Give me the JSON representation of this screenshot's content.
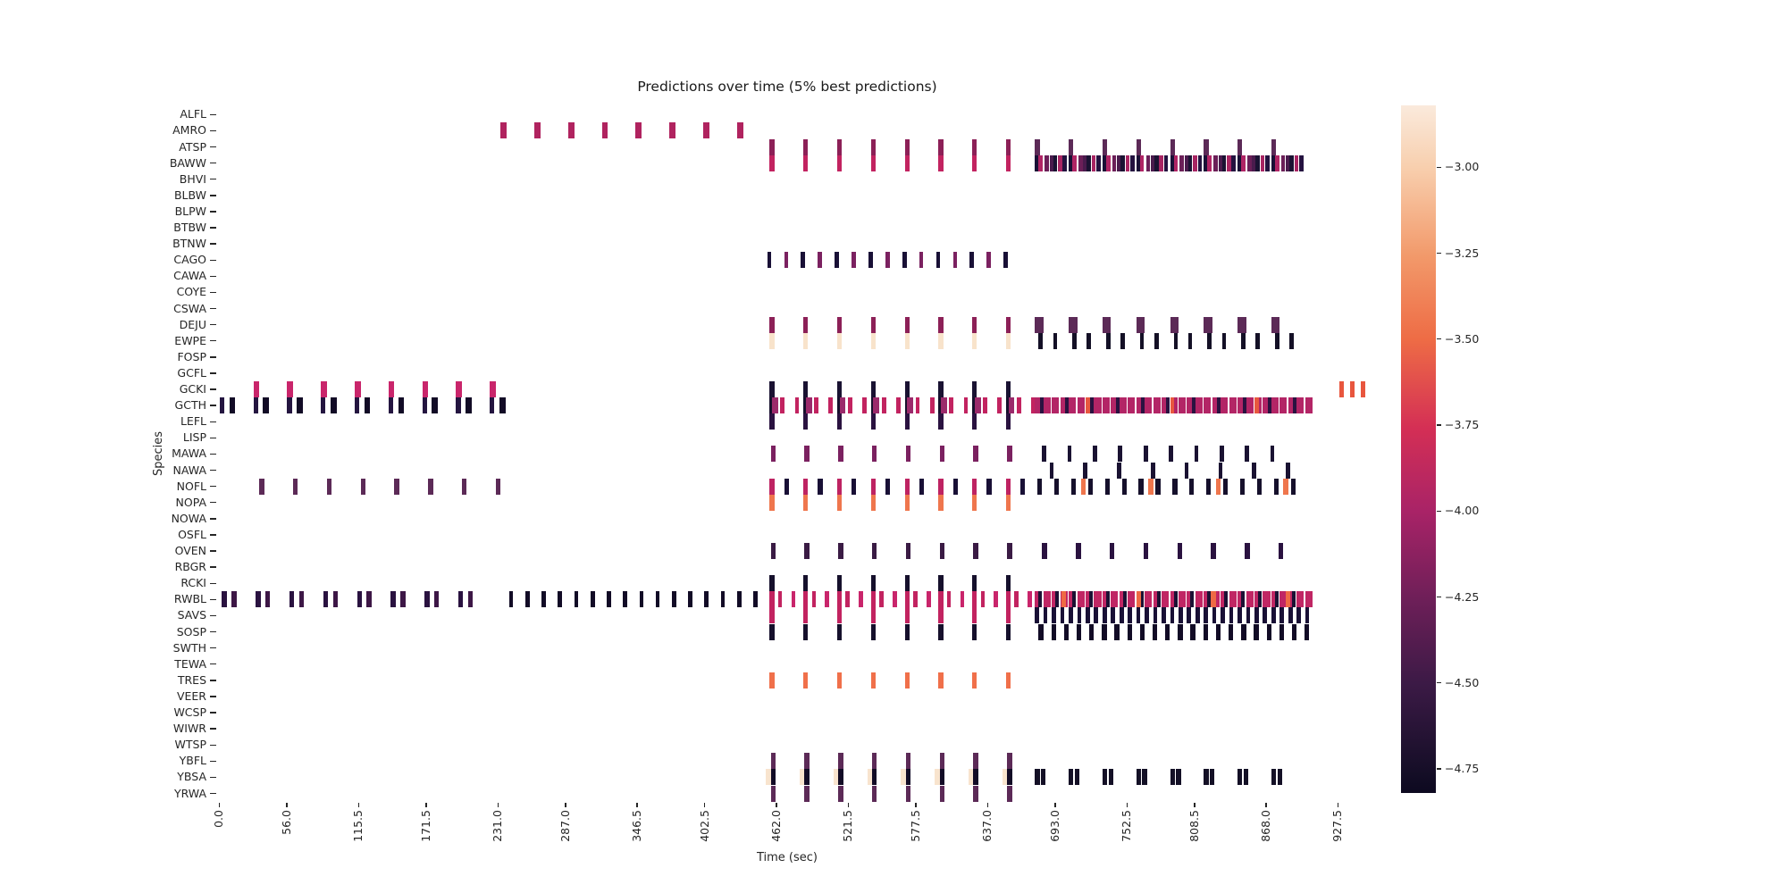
{
  "chart_data": {
    "type": "heatmap",
    "title": "Predictions over time (5% best predictions)",
    "xlabel": "Time (sec)",
    "ylabel": "Species",
    "species": [
      "ALFL",
      "AMRO",
      "ATSP",
      "BAWW",
      "BHVI",
      "BLBW",
      "BLPW",
      "BTBW",
      "BTNW",
      "CAGO",
      "CAWA",
      "COYE",
      "CSWA",
      "DEJU",
      "EWPE",
      "FOSP",
      "GCFL",
      "GCKI",
      "GCTH",
      "LEFL",
      "LISP",
      "MAWA",
      "NAWA",
      "NOFL",
      "NOPA",
      "NOWA",
      "OSFL",
      "OVEN",
      "RBGR",
      "RCKI",
      "RWBL",
      "SAVS",
      "SOSP",
      "SWTH",
      "TEWA",
      "TRES",
      "VEER",
      "WCSP",
      "WIWR",
      "WTSP",
      "YBFL",
      "YBSA",
      "YRWA"
    ],
    "x_ticks": [
      0.0,
      56.0,
      115.5,
      171.5,
      231.0,
      287.0,
      346.5,
      402.5,
      462.0,
      521.5,
      577.5,
      637.0,
      693.0,
      752.5,
      808.5,
      868.0,
      927.5
    ],
    "time_range": [
      0,
      945
    ],
    "bin_seconds": 3.5,
    "colorbar": {
      "vmax": -2.82,
      "vmin": -4.82,
      "ticks": [
        -3.0,
        -3.25,
        -3.5,
        -3.75,
        -4.0,
        -4.25,
        -4.5,
        -4.75
      ],
      "gradient_stops": [
        {
          "pos": 0.0,
          "color": "#faeadc"
        },
        {
          "pos": 0.09,
          "color": "#f8cfae"
        },
        {
          "pos": 0.22,
          "color": "#f2996a"
        },
        {
          "pos": 0.34,
          "color": "#ee6c45"
        },
        {
          "pos": 0.47,
          "color": "#d42f55"
        },
        {
          "pos": 0.59,
          "color": "#a92367"
        },
        {
          "pos": 0.72,
          "color": "#6d1f58"
        },
        {
          "pos": 0.84,
          "color": "#3c1a46"
        },
        {
          "pos": 0.97,
          "color": "#150e27"
        },
        {
          "pos": 1.0,
          "color": "#0d0920"
        }
      ]
    },
    "mark_groups": [
      {
        "species": "GCKI",
        "t0": 30,
        "period": 28,
        "count": 8,
        "w": 5,
        "color": "#c9256b"
      },
      {
        "species": "GCTH",
        "t0": 2,
        "period": 28,
        "count": 9,
        "w": 4,
        "color": "#241540"
      },
      {
        "species": "GCTH",
        "t0": 10,
        "period": 28,
        "count": 9,
        "w": 5,
        "color": "#120b26"
      },
      {
        "species": "NOFL",
        "t0": 35,
        "period": 28,
        "count": 8,
        "w": 4,
        "color": "#5c2a57"
      },
      {
        "species": "RWBL",
        "t0": 4,
        "period": 28,
        "count": 8,
        "w": 4,
        "color": "#2a1240"
      },
      {
        "species": "RWBL",
        "t0": 12,
        "period": 28,
        "count": 8,
        "w": 4,
        "color": "#3d1746"
      },
      {
        "species": "RWBL",
        "t0": 242,
        "period": 13.5,
        "count": 16,
        "w": 3.5,
        "color": "#120b26"
      },
      {
        "species": "AMRO",
        "t0": 235,
        "period": 28,
        "count": 8,
        "w": 5,
        "color": "#b0235f"
      },
      {
        "species": "ATSP",
        "t0": 458,
        "period": 28,
        "count": 8,
        "w": 4,
        "color": "#8c2057"
      },
      {
        "species": "BAWW",
        "t0": 458,
        "period": 28,
        "count": 8,
        "w": 4,
        "color": "#c22360"
      },
      {
        "species": "CAGO",
        "t0": 456,
        "period": 28,
        "count": 8,
        "w": 3.5,
        "color": "#191036"
      },
      {
        "species": "CAGO",
        "t0": 470,
        "period": 28,
        "count": 7,
        "w": 3.5,
        "color": "#7b2160"
      },
      {
        "species": "DEJU",
        "t0": 458,
        "period": 28,
        "count": 8,
        "w": 4,
        "color": "#8c2057"
      },
      {
        "species": "EWPE",
        "t0": 458,
        "period": 28,
        "count": 8,
        "w": 4,
        "color": "#f8e3cb"
      },
      {
        "species": "GCKI",
        "t0": 458,
        "period": 28,
        "count": 8,
        "w": 4,
        "color": "#1a1232"
      },
      {
        "species": "GCTH",
        "t0": 458,
        "period": 28,
        "count": 8,
        "w": 5,
        "color": "#16102c"
      },
      {
        "species": "LEFL",
        "t0": 458,
        "period": 28,
        "count": 8,
        "w": 4,
        "color": "#2a1240"
      },
      {
        "species": "GCTH",
        "t0": 460,
        "period": 28,
        "count": 8,
        "w": 5,
        "color": "#9b2a6b"
      },
      {
        "species": "GCTH",
        "t0": 467,
        "period": 28,
        "count": 8,
        "w": 3.5,
        "color": "#c22360"
      },
      {
        "species": "GCTH",
        "t0": 479,
        "period": 28,
        "count": 8,
        "w": 3.5,
        "color": "#c22360"
      },
      {
        "species": "MAWA",
        "t0": 459,
        "period": 28,
        "count": 8,
        "w": 4,
        "color": "#7b2160"
      },
      {
        "species": "NOFL",
        "t0": 458,
        "period": 28,
        "count": 8,
        "w": 4,
        "color": "#be2362"
      },
      {
        "species": "NOPA",
        "t0": 458,
        "period": 28,
        "count": 8,
        "w": 4,
        "color": "#ef764d"
      },
      {
        "species": "NOFL",
        "t0": 470,
        "period": 28,
        "count": 8,
        "w": 4,
        "color": "#191036"
      },
      {
        "species": "OVEN",
        "t0": 459,
        "period": 28,
        "count": 8,
        "w": 4,
        "color": "#3a1b44"
      },
      {
        "species": "RCKI",
        "t0": 458,
        "period": 28,
        "count": 8,
        "w": 4,
        "color": "#16102c"
      },
      {
        "species": "RWBL",
        "t0": 458,
        "period": 28,
        "count": 8,
        "w": 4,
        "color": "#c22360"
      },
      {
        "species": "SAVS",
        "t0": 458,
        "period": 28,
        "count": 8,
        "w": 4,
        "color": "#c22360"
      },
      {
        "species": "SOSP",
        "t0": 458,
        "period": 28,
        "count": 8,
        "w": 4,
        "color": "#16102c"
      },
      {
        "species": "RWBL",
        "t0": 465,
        "period": 28,
        "count": 8,
        "w": 3.5,
        "color": "#c22360"
      },
      {
        "species": "RWBL",
        "t0": 476,
        "period": 28,
        "count": 8,
        "w": 3.5,
        "color": "#c9256b"
      },
      {
        "species": "TRES",
        "t0": 458,
        "period": 28,
        "count": 8,
        "w": 4,
        "color": "#f0704a"
      },
      {
        "species": "YBSA",
        "t0": 455,
        "period": 28,
        "count": 8,
        "w": 4,
        "color": "#f8e4ce"
      },
      {
        "species": "YBFL",
        "t0": 459,
        "period": 28,
        "count": 8,
        "w": 4,
        "color": "#5c2a57"
      },
      {
        "species": "YBSA",
        "t0": 459,
        "period": 28,
        "count": 8,
        "w": 4,
        "color": "#120b26"
      },
      {
        "species": "YRWA",
        "t0": 459,
        "period": 28,
        "count": 8,
        "w": 4,
        "color": "#5c2a57"
      },
      {
        "species": "ATSP",
        "t0": 678,
        "period": 28,
        "count": 8,
        "w": 4,
        "color": "#5c2a57"
      },
      {
        "species": "BAWW",
        "t0": 678,
        "period": 28,
        "count": 8,
        "w": 4,
        "color": "#191036"
      },
      {
        "species": "BAWW",
        "t0": 681,
        "period": 28,
        "count": 8,
        "w": 3.5,
        "color": "#b02565"
      },
      {
        "species": "BAWW",
        "t0": 686,
        "period": 28,
        "count": 8,
        "w": 3.5,
        "color": "#6b1f58"
      },
      {
        "species": "BAWW",
        "t0": 690,
        "period": 28,
        "count": 8,
        "w": 3.5,
        "color": "#4a1b4d"
      },
      {
        "species": "BAWW",
        "t0": 693,
        "period": 28,
        "count": 8,
        "w": 3.5,
        "color": "#1a1232"
      },
      {
        "species": "BAWW",
        "t0": 697,
        "period": 28,
        "count": 8,
        "w": 3.5,
        "color": "#a82563"
      },
      {
        "species": "BAWW",
        "t0": 701,
        "period": 28,
        "count": 8,
        "w": 3.5,
        "color": "#241240"
      },
      {
        "species": "DEJU",
        "t0": 678,
        "period": 28,
        "count": 8,
        "w": 7,
        "color": "#5c2a57"
      },
      {
        "species": "EWPE",
        "t0": 681,
        "period": 28,
        "count": 8,
        "w": 3.5,
        "color": "#141026"
      },
      {
        "species": "EWPE",
        "t0": 693,
        "period": 28,
        "count": 8,
        "w": 3.5,
        "color": "#141026"
      },
      {
        "species": "GCTH",
        "t0": 678,
        "period": 7,
        "count": 33,
        "w": 6,
        "color": "#b32566"
      },
      {
        "species": "GCTH",
        "t0": 682,
        "period": 21,
        "count": 11,
        "w": 3,
        "color": "#2a1240"
      },
      {
        "species": "GCTH",
        "t0": 720,
        "period": 70,
        "count": 3,
        "w": 3.5,
        "color": "#e8583f"
      },
      {
        "species": "MAWA",
        "t0": 684,
        "period": 21,
        "count": 10,
        "w": 3.5,
        "color": "#1a1232"
      },
      {
        "species": "NAWA",
        "t0": 690,
        "period": 28,
        "count": 8,
        "w": 3.5,
        "color": "#1a1232"
      },
      {
        "species": "NOFL",
        "t0": 680,
        "period": 14,
        "count": 16,
        "w": 4,
        "color": "#16102c"
      },
      {
        "species": "NOFL",
        "t0": 716,
        "period": 56,
        "count": 4,
        "w": 4,
        "color": "#ef764d"
      },
      {
        "species": "OVEN",
        "t0": 684,
        "period": 28,
        "count": 8,
        "w": 4,
        "color": "#2a1240"
      },
      {
        "species": "RWBL",
        "t0": 678,
        "period": 7,
        "count": 33,
        "w": 6,
        "color": "#c02664"
      },
      {
        "species": "RWBL",
        "t0": 681,
        "period": 14,
        "count": 16,
        "w": 3,
        "color": "#1c1134"
      },
      {
        "species": "RWBL",
        "t0": 700,
        "period": 62,
        "count": 4,
        "w": 4,
        "color": "#ef6a44"
      },
      {
        "species": "SAVS",
        "t0": 678,
        "period": 7,
        "count": 33,
        "w": 3.5,
        "color": "#191036"
      },
      {
        "species": "SOSP",
        "t0": 681,
        "period": 10.5,
        "count": 22,
        "w": 4,
        "color": "#120b26"
      },
      {
        "species": "YBSA",
        "t0": 678,
        "period": 28,
        "count": 8,
        "w": 4,
        "color": "#141026"
      },
      {
        "species": "YBSA",
        "t0": 683,
        "period": 28,
        "count": 8,
        "w": 4,
        "color": "#141026"
      },
      {
        "species": "GCKI",
        "t0": 930,
        "period": 9,
        "count": 3,
        "w": 4,
        "color": "#e8563e"
      }
    ]
  }
}
